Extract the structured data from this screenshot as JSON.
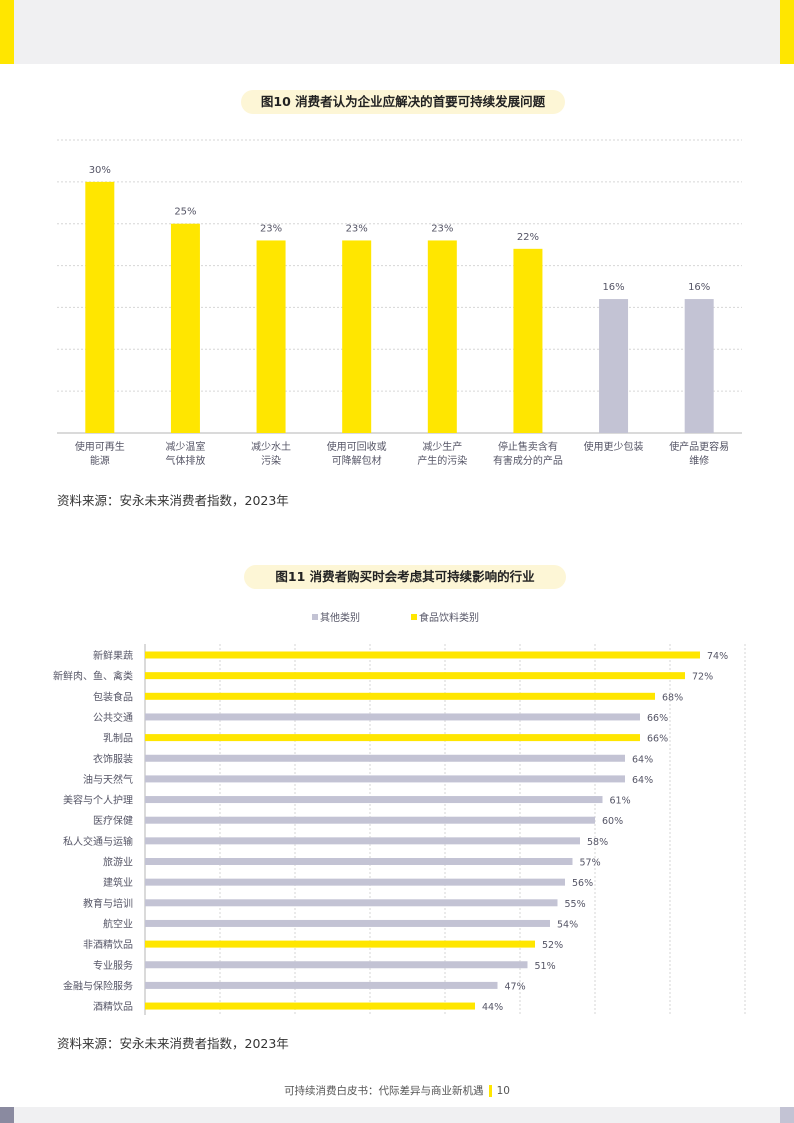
{
  "colors": {
    "yellow": "#ffe600",
    "gray": "#c3c3d4",
    "grid": "#d6d6d6",
    "axis": "#b5b5b5",
    "text": "#555566"
  },
  "fig10": {
    "title": "图10 消费者认为企业应解决的首要可持续发展问题",
    "source": "资料来源：安永未来消费者指数，2023年"
  },
  "fig11": {
    "title": "图11 消费者购买时会考虑其可持续影响的行业",
    "source": "资料来源：安永未来消费者指数，2023年"
  },
  "footer": {
    "text": "可持续消费白皮书：代际差异与商业新机遇",
    "page": "10"
  },
  "chart_data": [
    {
      "type": "bar",
      "title": "图10 消费者认为企业应解决的首要可持续发展问题",
      "orientation": "vertical",
      "grid": true,
      "ylim": [
        0,
        30
      ],
      "categories": [
        [
          "使用可再生",
          "能源"
        ],
        [
          "减少温室",
          "气体排放"
        ],
        [
          "减少水土",
          "污染"
        ],
        [
          "使用可回收或",
          "可降解包材"
        ],
        [
          "减少生产",
          "产生的污染"
        ],
        [
          "停止售卖含有",
          "有害成分的产品"
        ],
        [
          "使用更少包装"
        ],
        [
          "使产品更容易",
          "维修"
        ]
      ],
      "values": [
        30,
        25,
        23,
        23,
        23,
        22,
        16,
        16
      ],
      "value_labels": [
        "30%",
        "25%",
        "23%",
        "23%",
        "23%",
        "22%",
        "16%",
        "16%"
      ],
      "bar_colors": [
        "yellow",
        "yellow",
        "yellow",
        "yellow",
        "yellow",
        "yellow",
        "gray",
        "gray"
      ]
    },
    {
      "type": "bar",
      "title": "图11 消费者购买时会考虑其可持续影响的行业",
      "orientation": "horizontal",
      "grid": true,
      "xlim": [
        0,
        80
      ],
      "legend_position": "top-center",
      "legend": [
        {
          "name": "其他类别",
          "color": "gray"
        },
        {
          "name": "食品饮料类别",
          "color": "yellow"
        }
      ],
      "categories": [
        "新鲜果蔬",
        "新鲜肉、鱼、禽类",
        "包装食品",
        "公共交通",
        "乳制品",
        "衣饰服装",
        "油与天然气",
        "美容与个人护理",
        "医疗保健",
        "私人交通与运输",
        "旅游业",
        "建筑业",
        "教育与培训",
        "航空业",
        "非酒精饮品",
        "专业服务",
        "金融与保险服务",
        "酒精饮品"
      ],
      "values": [
        74,
        72,
        68,
        66,
        66,
        64,
        64,
        61,
        60,
        58,
        57,
        56,
        55,
        54,
        52,
        51,
        47,
        44
      ],
      "value_labels": [
        "74%",
        "72%",
        "68%",
        "66%",
        "66%",
        "64%",
        "64%",
        "61%",
        "60%",
        "58%",
        "57%",
        "56%",
        "55%",
        "54%",
        "52%",
        "51%",
        "47%",
        "44%"
      ],
      "bar_colors": [
        "yellow",
        "yellow",
        "yellow",
        "gray",
        "yellow",
        "gray",
        "gray",
        "gray",
        "gray",
        "gray",
        "gray",
        "gray",
        "gray",
        "gray",
        "yellow",
        "gray",
        "gray",
        "yellow"
      ]
    }
  ]
}
